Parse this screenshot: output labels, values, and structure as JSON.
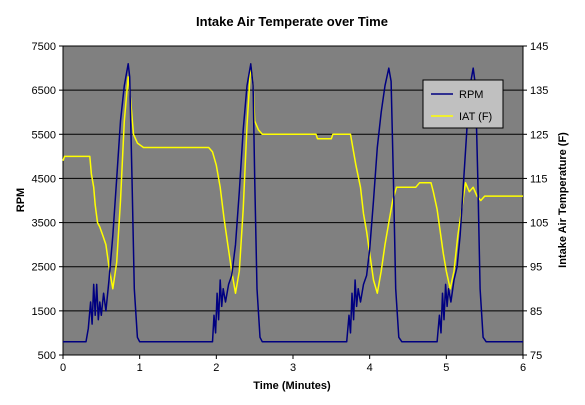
{
  "chart_data": {
    "type": "line",
    "title": "Intake Air Temperate over Time",
    "xlabel": "Time (Minutes)",
    "ylabel": "RPM",
    "y2label": "Intake Air Temperature (F)",
    "xlim": [
      0,
      6
    ],
    "ylim": [
      500,
      7500
    ],
    "y2lim": [
      75,
      145
    ],
    "x_ticks": [
      "0",
      "1",
      "2",
      "3",
      "4",
      "5",
      "6"
    ],
    "y_ticks": [
      "500",
      "1500",
      "2500",
      "3500",
      "4500",
      "5500",
      "6500",
      "7500"
    ],
    "y2_ticks": [
      "75",
      "85",
      "95",
      "105",
      "115",
      "125",
      "135",
      "145"
    ],
    "grid": true,
    "plot_background": "#808080",
    "legend_position": "upper-right",
    "series": [
      {
        "name": "RPM",
        "axis": "left",
        "color": "#000080",
        "points": [
          [
            0,
            800
          ],
          [
            0.3,
            800
          ],
          [
            0.33,
            1100
          ],
          [
            0.36,
            1700
          ],
          [
            0.38,
            1200
          ],
          [
            0.4,
            2100
          ],
          [
            0.42,
            1400
          ],
          [
            0.44,
            2100
          ],
          [
            0.46,
            1300
          ],
          [
            0.48,
            1700
          ],
          [
            0.5,
            1400
          ],
          [
            0.53,
            1900
          ],
          [
            0.56,
            1500
          ],
          [
            0.6,
            2200
          ],
          [
            0.65,
            3200
          ],
          [
            0.7,
            4500
          ],
          [
            0.75,
            5800
          ],
          [
            0.8,
            6600
          ],
          [
            0.85,
            7100
          ],
          [
            0.87,
            6800
          ],
          [
            0.9,
            4500
          ],
          [
            0.93,
            2000
          ],
          [
            0.97,
            900
          ],
          [
            1.0,
            800
          ],
          [
            1.95,
            800
          ],
          [
            1.97,
            1400
          ],
          [
            1.99,
            1000
          ],
          [
            2.01,
            1900
          ],
          [
            2.03,
            1300
          ],
          [
            2.05,
            2200
          ],
          [
            2.07,
            1600
          ],
          [
            2.09,
            2000
          ],
          [
            2.12,
            1700
          ],
          [
            2.16,
            2100
          ],
          [
            2.2,
            2300
          ],
          [
            2.25,
            3000
          ],
          [
            2.3,
            4200
          ],
          [
            2.35,
            5600
          ],
          [
            2.4,
            6600
          ],
          [
            2.45,
            7100
          ],
          [
            2.48,
            6600
          ],
          [
            2.5,
            4500
          ],
          [
            2.53,
            2000
          ],
          [
            2.57,
            900
          ],
          [
            2.6,
            800
          ],
          [
            3.7,
            800
          ],
          [
            3.73,
            1400
          ],
          [
            3.75,
            1000
          ],
          [
            3.77,
            1900
          ],
          [
            3.79,
            1300
          ],
          [
            3.81,
            2200
          ],
          [
            3.83,
            1600
          ],
          [
            3.85,
            2000
          ],
          [
            3.88,
            1700
          ],
          [
            3.92,
            2100
          ],
          [
            3.96,
            2300
          ],
          [
            4.0,
            2900
          ],
          [
            4.05,
            4000
          ],
          [
            4.1,
            5200
          ],
          [
            4.15,
            6000
          ],
          [
            4.2,
            6600
          ],
          [
            4.25,
            7000
          ],
          [
            4.28,
            6700
          ],
          [
            4.31,
            4500
          ],
          [
            4.34,
            2000
          ],
          [
            4.38,
            900
          ],
          [
            4.42,
            800
          ],
          [
            4.88,
            800
          ],
          [
            4.91,
            1400
          ],
          [
            4.93,
            1000
          ],
          [
            4.95,
            1900
          ],
          [
            4.97,
            1300
          ],
          [
            4.99,
            2100
          ],
          [
            5.01,
            1600
          ],
          [
            5.03,
            2000
          ],
          [
            5.06,
            1700
          ],
          [
            5.1,
            2200
          ],
          [
            5.14,
            2500
          ],
          [
            5.18,
            3200
          ],
          [
            5.22,
            4300
          ],
          [
            5.26,
            5400
          ],
          [
            5.3,
            6500
          ],
          [
            5.35,
            7000
          ],
          [
            5.38,
            6600
          ],
          [
            5.41,
            4500
          ],
          [
            5.44,
            2000
          ],
          [
            5.48,
            900
          ],
          [
            5.52,
            800
          ],
          [
            6.0,
            800
          ]
        ]
      },
      {
        "name": "IAT (F)",
        "axis": "right",
        "color": "#ffff00",
        "points": [
          [
            0,
            119
          ],
          [
            0.02,
            120
          ],
          [
            0.35,
            120
          ],
          [
            0.37,
            116
          ],
          [
            0.4,
            113
          ],
          [
            0.42,
            109
          ],
          [
            0.45,
            105
          ],
          [
            0.48,
            104
          ],
          [
            0.52,
            102
          ],
          [
            0.56,
            100
          ],
          [
            0.6,
            95
          ],
          [
            0.65,
            90
          ],
          [
            0.7,
            96
          ],
          [
            0.75,
            110
          ],
          [
            0.8,
            128
          ],
          [
            0.85,
            138
          ],
          [
            0.88,
            133
          ],
          [
            0.92,
            125
          ],
          [
            0.97,
            123
          ],
          [
            1.05,
            122
          ],
          [
            1.9,
            122
          ],
          [
            1.95,
            121
          ],
          [
            2.0,
            118
          ],
          [
            2.05,
            113
          ],
          [
            2.1,
            106
          ],
          [
            2.15,
            100
          ],
          [
            2.2,
            94
          ],
          [
            2.25,
            89
          ],
          [
            2.3,
            94
          ],
          [
            2.35,
            108
          ],
          [
            2.4,
            127
          ],
          [
            2.45,
            141
          ],
          [
            2.48,
            136
          ],
          [
            2.5,
            128
          ],
          [
            2.55,
            126
          ],
          [
            2.6,
            125
          ],
          [
            3.3,
            125
          ],
          [
            3.32,
            124
          ],
          [
            3.5,
            124
          ],
          [
            3.52,
            125
          ],
          [
            3.75,
            125
          ],
          [
            3.78,
            122
          ],
          [
            3.82,
            118
          ],
          [
            3.88,
            113
          ],
          [
            3.92,
            107
          ],
          [
            3.96,
            103
          ],
          [
            4.0,
            98
          ],
          [
            4.05,
            92
          ],
          [
            4.1,
            89
          ],
          [
            4.15,
            94
          ],
          [
            4.2,
            100
          ],
          [
            4.25,
            105
          ],
          [
            4.3,
            110
          ],
          [
            4.35,
            113
          ],
          [
            4.6,
            113
          ],
          [
            4.65,
            114
          ],
          [
            4.8,
            114
          ],
          [
            4.83,
            112
          ],
          [
            4.88,
            108
          ],
          [
            4.92,
            103
          ],
          [
            4.96,
            98
          ],
          [
            5.0,
            94
          ],
          [
            5.05,
            90
          ],
          [
            5.1,
            94
          ],
          [
            5.15,
            102
          ],
          [
            5.2,
            108
          ],
          [
            5.25,
            114
          ],
          [
            5.3,
            112
          ],
          [
            5.35,
            113
          ],
          [
            5.4,
            111
          ],
          [
            5.45,
            110
          ],
          [
            5.5,
            111
          ],
          [
            6.0,
            111
          ]
        ]
      }
    ]
  }
}
